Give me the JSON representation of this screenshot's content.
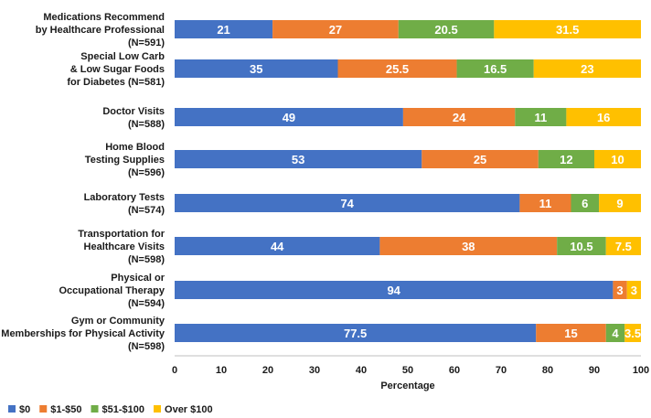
{
  "chart_data": {
    "type": "bar",
    "orientation": "horizontal",
    "stacked": true,
    "categories": [
      "Medications Recommend\nby Healthcare Professional\n(N=591)",
      "Special Low Carb\n& Low Sugar Foods\nfor Diabetes (N=581)",
      "Doctor Visits\n(N=588)",
      "Home Blood\nTesting Supplies\n(N=596)",
      "Laboratory Tests\n(N=574)",
      "Transportation for\nHealthcare Visits\n(N=598)",
      "Physical or\nOccupational Therapy\n(N=594)",
      "Gym or Community\nMemberships for Physical Activity\n(N=598)"
    ],
    "series": [
      {
        "name": "$0",
        "color": "#4472C4",
        "values": [
          21,
          35,
          49,
          53,
          74,
          44,
          94,
          77.5
        ]
      },
      {
        "name": "$1-$50",
        "color": "#ED7D31",
        "values": [
          27,
          25.5,
          24,
          25,
          11,
          38,
          3,
          15
        ]
      },
      {
        "name": "$51-$100",
        "color": "#70AD47",
        "values": [
          20.5,
          16.5,
          11,
          12,
          6,
          10.5,
          0,
          4
        ]
      },
      {
        "name": "Over $100",
        "color": "#FFC000",
        "values": [
          31.5,
          23,
          16,
          10,
          9,
          7.5,
          3,
          3.5
        ]
      }
    ],
    "data_labels": [
      [
        "21",
        "27",
        "20.5",
        "31.5"
      ],
      [
        "35",
        "25.5",
        "16.5",
        "23"
      ],
      [
        "49",
        "24",
        "11",
        "16"
      ],
      [
        "53",
        "25",
        "12",
        "10"
      ],
      [
        "74",
        "11",
        "6",
        "9"
      ],
      [
        "44",
        "38",
        "10.5",
        "7.5"
      ],
      [
        "94",
        "3",
        "0",
        "3"
      ],
      [
        "77.5",
        "15",
        "4",
        "3.5"
      ]
    ],
    "xlabel": "Percentage",
    "ylabel": "",
    "xlim": [
      0,
      100
    ],
    "xticks": [
      0,
      10,
      20,
      30,
      40,
      50,
      60,
      70,
      80,
      90,
      100
    ],
    "grid": false,
    "legend_position": "bottom-left"
  }
}
